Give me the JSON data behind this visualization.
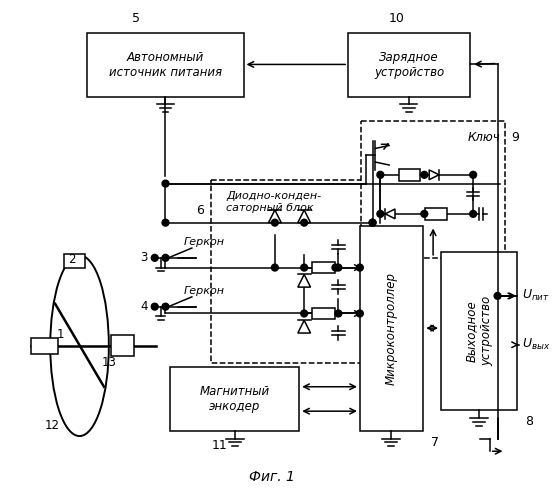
{
  "title": "Фиг. 1",
  "bg_color": "#ffffff",
  "line_color": "#000000",
  "fig_width": 5.55,
  "fig_height": 5.0,
  "dpi": 100,
  "boxes": {
    "auto_src": [
      90,
      22,
      165,
      68,
      "Автономный\nисточник питания",
      "5",
      false,
      false
    ],
    "charger": [
      355,
      22,
      128,
      68,
      "Зарядное\nустройство",
      "10",
      false,
      false
    ],
    "diode_blk": [
      218,
      185,
      188,
      190,
      "",
      "6",
      true,
      false
    ],
    "key_blk": [
      367,
      120,
      148,
      138,
      "",
      "9",
      true,
      false
    ],
    "microctrl": [
      368,
      228,
      68,
      210,
      "Микроконтроллер",
      "7",
      false,
      true
    ],
    "out_dev": [
      452,
      258,
      80,
      158,
      "Выходное\nустройство",
      "8",
      false,
      true
    ],
    "encoder": [
      175,
      370,
      130,
      65,
      "Магнитный\nэнкодер",
      "11",
      false,
      false
    ]
  }
}
